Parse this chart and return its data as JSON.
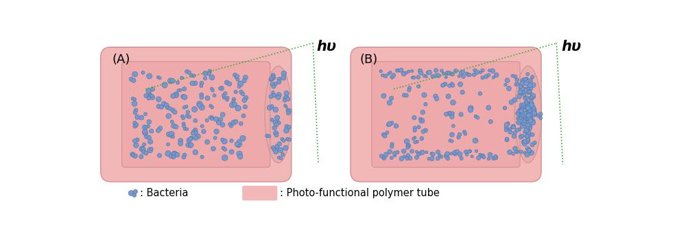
{
  "bg_color": "#ffffff",
  "tube_outer_color": "#f2b8b8",
  "tube_wall_color": "#e8a0a0",
  "tube_inner_bg": "#eeaaaa",
  "tube_inner_darker": "#e09090",
  "bacteria_color": "#7799cc",
  "bacteria_edge_color": "#5577aa",
  "green_line_color": "#33aa33",
  "label_A": "(A)",
  "label_B": "(B)",
  "hv_label": "hυ",
  "legend_bacteria": ": Bacteria",
  "legend_tube": ": Photo-functional polymer tube",
  "label_fontsize": 13,
  "legend_fontsize": 9,
  "hv_fontsize": 15
}
